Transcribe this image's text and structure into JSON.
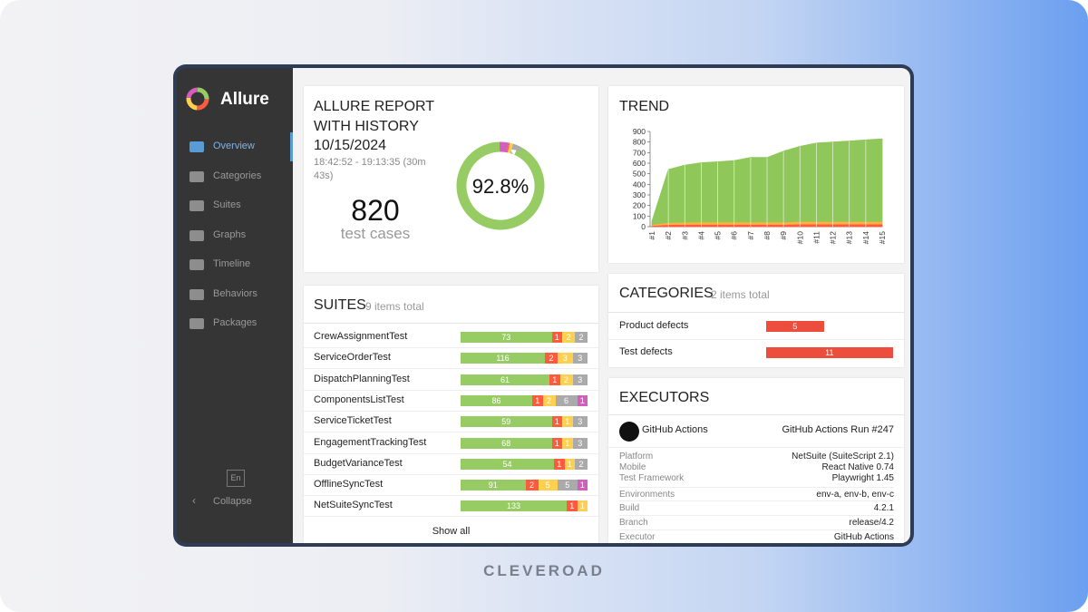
{
  "brand": "Allure",
  "watermark": "CLEVEROAD",
  "sidebar": {
    "items": [
      "Overview",
      "Categories",
      "Suites",
      "Graphs",
      "Timeline",
      "Behaviors",
      "Packages"
    ],
    "active": 0,
    "language": "En",
    "collapse": "Collapse"
  },
  "summary": {
    "title": [
      "ALLURE REPORT",
      "WITH HISTORY",
      "10/15/2024"
    ],
    "duration": "18:42:52 - 19:13:35 (30m 43s)",
    "count": 820,
    "count_label": "test cases",
    "percent_label": "92.8%",
    "donut": {
      "type": "donut",
      "values": [
        92.8,
        3.3,
        0.5,
        1.2,
        2.2
      ],
      "colors": [
        "#97cc64",
        "#d35ebe",
        "#fd5a3e",
        "#ffd050",
        "#aaaaaa"
      ]
    }
  },
  "trend": {
    "type": "area",
    "title": "TREND",
    "categories": [
      "#1",
      "#2",
      "#3",
      "#4",
      "#5",
      "#6",
      "#7",
      "#8",
      "#9",
      "#10",
      "#11",
      "#12",
      "#13",
      "#14",
      "#15"
    ],
    "series": [
      {
        "color": "#fd5a3e",
        "values": [
          10,
          20,
          22,
          22,
          22,
          22,
          22,
          22,
          22,
          25,
          25,
          25,
          25,
          25,
          25
        ]
      },
      {
        "color": "#ffb040",
        "values": [
          10,
          20,
          20,
          22,
          22,
          22,
          22,
          22,
          22,
          25,
          25,
          25,
          25,
          25,
          25
        ]
      },
      {
        "color": "#8fc75a",
        "values": [
          30,
          500,
          540,
          560,
          570,
          580,
          610,
          610,
          670,
          710,
          740,
          750,
          760,
          770,
          780
        ]
      }
    ],
    "ylim": [
      0,
      900
    ],
    "yticks": [
      0,
      100,
      200,
      300,
      400,
      500,
      600,
      700,
      800,
      900
    ]
  },
  "suites": {
    "title": "SUITES",
    "subtitle": "9 items total",
    "show_all": "Show all",
    "rows": [
      {
        "name": "CrewAssignmentTest",
        "segments": [
          {
            "value": 73,
            "color": "#97cc64"
          },
          {
            "value": 1,
            "color": "#fd5a3e"
          },
          {
            "value": 2,
            "color": "#ffd050"
          },
          {
            "value": 2,
            "color": "#aaaaaa"
          }
        ]
      },
      {
        "name": "ServiceOrderTest",
        "segments": [
          {
            "value": 116,
            "color": "#97cc64"
          },
          {
            "value": 2,
            "color": "#fd5a3e"
          },
          {
            "value": 3,
            "color": "#ffd050"
          },
          {
            "value": 3,
            "color": "#aaaaaa"
          }
        ]
      },
      {
        "name": "DispatchPlanningTest",
        "segments": [
          {
            "value": 61,
            "color": "#97cc64"
          },
          {
            "value": 1,
            "color": "#fd5a3e"
          },
          {
            "value": 2,
            "color": "#ffd050"
          },
          {
            "value": 3,
            "color": "#aaaaaa"
          }
        ]
      },
      {
        "name": "ComponentsListTest",
        "segments": [
          {
            "value": 86,
            "color": "#97cc64"
          },
          {
            "value": 1,
            "color": "#fd5a3e"
          },
          {
            "value": 2,
            "color": "#ffd050"
          },
          {
            "value": 6,
            "color": "#aaaaaa"
          },
          {
            "value": 1,
            "color": "#d35ebe"
          }
        ]
      },
      {
        "name": "ServiceTicketTest",
        "segments": [
          {
            "value": 59,
            "color": "#97cc64"
          },
          {
            "value": 1,
            "color": "#fd5a3e"
          },
          {
            "value": 1,
            "color": "#ffd050"
          },
          {
            "value": 3,
            "color": "#aaaaaa"
          }
        ]
      },
      {
        "name": "EngagementTrackingTest",
        "segments": [
          {
            "value": 68,
            "color": "#97cc64"
          },
          {
            "value": 1,
            "color": "#fd5a3e"
          },
          {
            "value": 1,
            "color": "#ffd050"
          },
          {
            "value": 3,
            "color": "#aaaaaa"
          }
        ]
      },
      {
        "name": "BudgetVarianceTest",
        "segments": [
          {
            "value": 54,
            "color": "#97cc64"
          },
          {
            "value": 1,
            "color": "#fd5a3e"
          },
          {
            "value": 1,
            "color": "#ffd050"
          },
          {
            "value": 2,
            "color": "#aaaaaa"
          }
        ]
      },
      {
        "name": "OfflineSyncTest",
        "segments": [
          {
            "value": 91,
            "color": "#97cc64"
          },
          {
            "value": 2,
            "color": "#fd5a3e"
          },
          {
            "value": 5,
            "color": "#ffd050"
          },
          {
            "value": 5,
            "color": "#aaaaaa"
          },
          {
            "value": 1,
            "color": "#d35ebe"
          }
        ]
      },
      {
        "name": "NetSuiteSyncTest",
        "segments": [
          {
            "value": 133,
            "color": "#97cc64"
          },
          {
            "value": 1,
            "color": "#fd5a3e"
          },
          {
            "value": 1,
            "color": "#ffd050"
          }
        ]
      }
    ]
  },
  "categories": {
    "title": "CATEGORIES",
    "subtitle": "2 items total",
    "color": "#ec4d3d",
    "rows": [
      {
        "name": "Product defects",
        "value": 5
      },
      {
        "name": "Test defects",
        "value": 11
      }
    ]
  },
  "executors": {
    "title": "EXECUTORS",
    "name": "GitHub Actions",
    "run": "GitHub Actions Run #247",
    "rows": [
      {
        "label": "Platform",
        "value": "NetSuite (SuiteScript 2.1)"
      },
      {
        "label": "Mobile",
        "value": "React Native 0.74"
      },
      {
        "label": "Test Framework",
        "value": "Playwright 1.45"
      },
      {
        "label": "Environments",
        "value": "env-a, env-b, env-c"
      },
      {
        "label": "Build",
        "value": "4.2.1"
      },
      {
        "label": "Branch",
        "value": "release/4.2"
      },
      {
        "label": "Executor",
        "value": "GitHub Actions"
      }
    ]
  }
}
